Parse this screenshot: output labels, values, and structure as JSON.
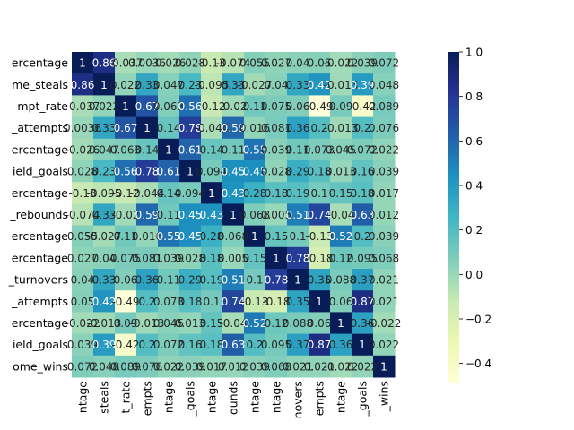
{
  "chart_data": {
    "type": "heatmap",
    "row_labels": [
      "ercentage",
      "me_steals",
      "mpt_rate",
      "_attempts",
      "ercentage",
      "ield_goals",
      "ercentage",
      "_rebounds",
      "ercentage",
      "ercentage",
      "_turnovers",
      "_attempts",
      "ercentage",
      "ield_goals",
      "ome_wins"
    ],
    "col_labels": [
      "ntage",
      "steals",
      "t_rate",
      "empts",
      "ntage",
      "_goals",
      "ntage",
      "ounds",
      "ntage",
      "ntage",
      "novers",
      "empts",
      "ntage",
      "_goals",
      "_wins"
    ],
    "values": [
      [
        1,
        0.86,
        -0.037,
        0.0036,
        -0.026,
        0.028,
        -0.13,
        -0.074,
        0.055,
        0.027,
        0.04,
        0.05,
        -0.022,
        0.039,
        0.072
      ],
      [
        0.86,
        1,
        0.022,
        0.33,
        0.047,
        0.23,
        -0.095,
        0.33,
        -0.027,
        0.04,
        0.33,
        0.42,
        -0.013,
        0.39,
        0.048
      ],
      [
        -0.037,
        0.022,
        1,
        0.67,
        0.063,
        0.56,
        -0.12,
        -0.02,
        0.11,
        0.075,
        0.06,
        -0.49,
        0.09,
        -0.42,
        0.089
      ],
      [
        0.0036,
        0.33,
        0.67,
        1,
        0.14,
        0.78,
        -0.044,
        0.59,
        0.016,
        0.081,
        0.36,
        0.2,
        -0.013,
        0.2,
        0.076
      ],
      [
        -0.026,
        0.047,
        0.063,
        0.14,
        1,
        0.61,
        0.14,
        0.11,
        0.55,
        0.039,
        0.11,
        0.073,
        0.045,
        0.072,
        0.022
      ],
      [
        0.028,
        0.23,
        0.56,
        0.78,
        0.61,
        1,
        0.094,
        0.45,
        0.45,
        0.028,
        0.29,
        0.18,
        0.013,
        0.16,
        0.039
      ],
      [
        -0.13,
        -0.095,
        -0.12,
        -0.044,
        0.14,
        0.094,
        1,
        0.43,
        0.28,
        0.18,
        0.19,
        0.1,
        0.15,
        0.18,
        0.017
      ],
      [
        -0.074,
        0.33,
        -0.02,
        0.59,
        0.11,
        0.45,
        0.43,
        1,
        0.068,
        0.005,
        0.51,
        0.74,
        -0.04,
        0.63,
        0.012
      ],
      [
        0.055,
        -0.027,
        0.11,
        0.016,
        0.55,
        0.45,
        0.28,
        0.068,
        1,
        0.15,
        0.1,
        -0.13,
        0.52,
        0.2,
        0.039
      ],
      [
        0.027,
        0.04,
        0.075,
        0.081,
        0.039,
        0.028,
        0.18,
        0.005,
        0.15,
        1,
        0.78,
        -0.18,
        0.12,
        0.095,
        0.068
      ],
      [
        0.04,
        0.33,
        0.06,
        0.36,
        0.11,
        0.29,
        0.19,
        0.51,
        0.1,
        0.78,
        1,
        0.35,
        0.088,
        0.37,
        0.021
      ],
      [
        0.05,
        0.42,
        -0.49,
        0.2,
        0.073,
        0.18,
        0.1,
        0.74,
        -0.13,
        -0.18,
        0.35,
        1,
        0.06,
        0.87,
        0.021
      ],
      [
        -0.022,
        -0.013,
        0.09,
        -0.013,
        0.045,
        0.013,
        0.15,
        -0.04,
        0.52,
        0.12,
        0.088,
        0.06,
        1,
        0.36,
        -0.022
      ],
      [
        0.039,
        0.39,
        -0.42,
        0.2,
        0.072,
        0.16,
        0.18,
        0.63,
        0.2,
        0.095,
        0.37,
        0.87,
        0.36,
        1,
        0.022
      ],
      [
        0.072,
        0.048,
        0.089,
        0.076,
        0.022,
        0.039,
        0.017,
        0.012,
        0.039,
        0.068,
        0.021,
        0.021,
        -0.022,
        0.022,
        1
      ]
    ],
    "cell_text": [
      [
        "1",
        "0.86",
        "-0.037",
        "0.0036",
        "-0.026",
        "0.028",
        "-0.13",
        "-0.074",
        "0.055",
        "0.027",
        "0.04",
        "0.05",
        "-0.022",
        "0.039",
        "0.072"
      ],
      [
        "0.86",
        "1",
        "0.022",
        "0.33",
        "0.047",
        "0.23",
        "-0.095",
        "0.33",
        "-0.027",
        "0.04",
        "0.33",
        "0.42",
        "-0.013",
        "0.39",
        "0.048"
      ],
      [
        "-0.037",
        "0.022",
        "1",
        "0.67",
        "0.063",
        "0.56",
        "-0.12",
        "-0.02",
        "0.11",
        "0.075",
        "0.06",
        "-0.49",
        "0.09",
        "-0.42",
        "0.089"
      ],
      [
        "0.0036",
        "0.33",
        "0.67",
        "1",
        "0.14",
        "0.78",
        "-0.044",
        "0.59",
        "0.016",
        "0.081",
        "0.36",
        "0.2",
        "-0.013",
        "0.2",
        "0.076"
      ],
      [
        "-0.026",
        "0.047",
        "0.063",
        "0.14",
        "1",
        "0.61",
        "0.14",
        "0.11",
        "0.55",
        "0.039",
        "0.11",
        "0.073",
        "0.045",
        "0.072",
        "0.022"
      ],
      [
        "0.028",
        "0.23",
        "0.56",
        "0.78",
        "0.61",
        "1",
        "0.094",
        "0.45",
        "0.45",
        "0.028",
        "0.29",
        "0.18",
        "0.013",
        "0.16",
        "0.039"
      ],
      [
        "-0.13",
        "-0.095",
        "-0.12",
        "-0.044",
        "0.14",
        "0.094",
        "1",
        "0.43",
        "0.28",
        "0.18",
        "0.19",
        "0.1",
        "0.15",
        "0.18",
        "0.017"
      ],
      [
        "-0.074",
        "0.33",
        "-0.02",
        "0.59",
        "0.11",
        "0.45",
        "0.43",
        "1",
        "0.068",
        "0.005",
        "0.51",
        "0.74",
        "-0.04",
        "0.63",
        "0.012"
      ],
      [
        "0.055",
        "-0.027",
        "0.11",
        "0.016",
        "0.55",
        "0.45",
        "0.28",
        "0.068",
        "1",
        "0.15",
        "0.1",
        "-0.13",
        "0.52",
        "0.2",
        "0.039"
      ],
      [
        "0.027",
        "0.04",
        "0.075",
        "0.081",
        "0.039",
        "0.028",
        "0.18",
        "0.005",
        "0.15",
        "1",
        "0.78",
        "-0.18",
        "0.12",
        "0.095",
        "0.068"
      ],
      [
        "0.04",
        "0.33",
        "0.06",
        "0.36",
        "0.11",
        "0.29",
        "0.19",
        "0.51",
        "0.1",
        "0.78",
        "1",
        "0.35",
        "0.088",
        "0.37",
        "0.021"
      ],
      [
        "0.05",
        "0.42",
        "-0.49",
        "0.2",
        "0.073",
        "0.18",
        "0.1",
        "0.74",
        "-0.13",
        "-0.18",
        "0.35",
        "1",
        "0.06",
        "0.87",
        "0.021"
      ],
      [
        "-0.022",
        "-0.013",
        "0.09",
        "-0.013",
        "0.045",
        "0.013",
        "0.15",
        "-0.04",
        "0.52",
        "0.12",
        "0.088",
        "0.06",
        "1",
        "0.36",
        "-0.022"
      ],
      [
        "0.039",
        "0.39",
        "-0.42",
        "0.2",
        "0.072",
        "0.16",
        "0.18",
        "0.63",
        "0.2",
        "0.095",
        "0.37",
        "0.87",
        "0.36",
        "1",
        "0.022"
      ],
      [
        "0.072",
        "0.048",
        "0.089",
        "0.076",
        "0.022",
        "0.039",
        "0.017",
        "0.012",
        "0.039",
        "0.068",
        "0.021",
        "0.021",
        "-0.022",
        "0.022",
        "1"
      ]
    ],
    "colorscale": "YlGnBu",
    "vmin": -0.49,
    "vmax": 1.0,
    "colorbar_ticks": [
      "1.0",
      "0.8",
      "0.6",
      "0.4",
      "0.2",
      "0.0",
      "−0.2",
      "−0.4"
    ],
    "colorbar_tick_values": [
      1.0,
      0.8,
      0.6,
      0.4,
      0.2,
      0.0,
      -0.2,
      -0.4
    ]
  }
}
